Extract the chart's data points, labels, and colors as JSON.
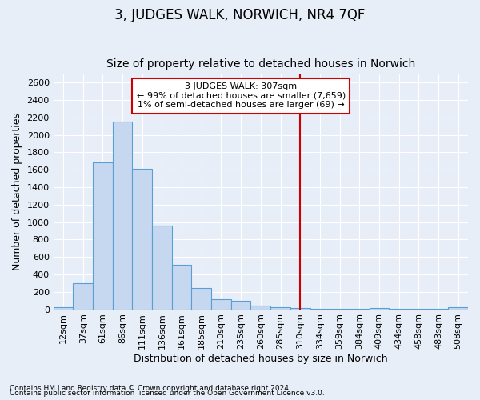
{
  "title": "3, JUDGES WALK, NORWICH, NR4 7QF",
  "subtitle": "Size of property relative to detached houses in Norwich",
  "xlabel": "Distribution of detached houses by size in Norwich",
  "ylabel": "Number of detached properties",
  "footnote1": "Contains HM Land Registry data © Crown copyright and database right 2024.",
  "footnote2": "Contains public sector information licensed under the Open Government Licence v3.0.",
  "bar_labels": [
    "12sqm",
    "37sqm",
    "61sqm",
    "86sqm",
    "111sqm",
    "136sqm",
    "161sqm",
    "185sqm",
    "210sqm",
    "235sqm",
    "260sqm",
    "285sqm",
    "310sqm",
    "334sqm",
    "359sqm",
    "384sqm",
    "409sqm",
    "434sqm",
    "458sqm",
    "483sqm",
    "508sqm"
  ],
  "bar_values": [
    20,
    300,
    1680,
    2150,
    1610,
    960,
    510,
    245,
    120,
    100,
    40,
    22,
    10,
    8,
    5,
    3,
    15,
    3,
    8,
    3,
    20
  ],
  "bar_color": "#c5d8f0",
  "bar_edge_color": "#5a9fd4",
  "vline_x": 12,
  "vline_color": "#cc0000",
  "annotation_line1": "3 JUDGES WALK: 307sqm",
  "annotation_line2": "← 99% of detached houses are smaller (7,659)",
  "annotation_line3": "1% of semi-detached houses are larger (69) →",
  "ylim": [
    0,
    2700
  ],
  "yticks": [
    0,
    200,
    400,
    600,
    800,
    1000,
    1200,
    1400,
    1600,
    1800,
    2000,
    2200,
    2400,
    2600
  ],
  "background_color": "#e8eef8",
  "grid_color": "#ffffff",
  "title_fontsize": 12,
  "subtitle_fontsize": 10,
  "axis_label_fontsize": 9,
  "tick_fontsize": 8
}
